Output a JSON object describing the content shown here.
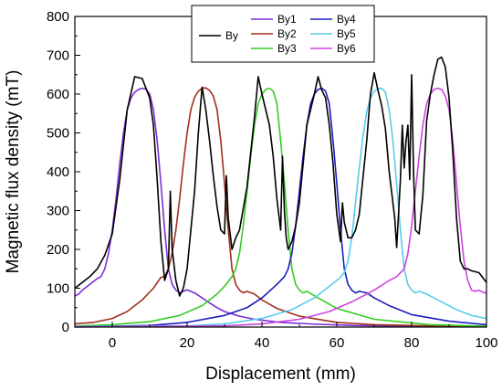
{
  "chart_data": {
    "type": "line",
    "title": "",
    "xlabel": "Displacement (mm)",
    "ylabel": "Magnetic flux density (mT)",
    "xlim": [
      -10,
      100
    ],
    "ylim": [
      0,
      800
    ],
    "xticks": [
      0,
      20,
      40,
      60,
      80,
      100
    ],
    "yticks": [
      0,
      100,
      200,
      300,
      400,
      500,
      600,
      700,
      800
    ],
    "x_tick_labels": [
      "0",
      "20",
      "40",
      "60",
      "80",
      "100"
    ],
    "y_tick_labels": [
      "0",
      "100",
      "200",
      "300",
      "400",
      "500",
      "600",
      "700",
      "800"
    ],
    "grid": false,
    "legend_position": "top-center",
    "legend_entries": [
      "By",
      "By1",
      "By2",
      "By3",
      "By4",
      "By5",
      "By6"
    ],
    "series": [
      {
        "name": "By",
        "color": "#000000",
        "x": [
          -10,
          -6,
          -4,
          -2,
          0,
          2,
          4,
          6,
          8,
          10,
          11,
          12,
          13,
          14,
          15,
          15.5,
          16,
          17,
          18,
          19,
          20,
          22,
          23,
          24,
          25,
          26,
          27,
          28,
          29,
          30,
          30.5,
          31,
          32,
          33,
          34,
          36,
          38,
          39,
          40,
          41,
          42,
          43,
          44,
          45,
          45.5,
          46,
          46.5,
          47,
          48,
          49,
          50,
          52,
          54,
          55,
          56,
          57,
          58,
          59,
          60,
          61,
          61.5,
          62,
          63,
          64,
          65,
          66,
          68,
          69,
          70,
          71,
          72,
          73,
          74,
          75,
          75.5,
          76,
          77,
          77.5,
          78,
          78.5,
          79,
          79.5,
          80,
          80.5,
          81,
          82,
          83,
          84,
          85,
          86,
          87,
          88,
          89,
          90,
          91,
          92,
          93,
          94,
          95,
          96,
          98,
          100
        ],
        "y": [
          100,
          130,
          150,
          185,
          240,
          380,
          560,
          645,
          640,
          590,
          520,
          380,
          220,
          120,
          150,
          350,
          200,
          120,
          80,
          100,
          150,
          350,
          500,
          618,
          560,
          480,
          390,
          310,
          250,
          240,
          390,
          280,
          200,
          230,
          250,
          360,
          540,
          645,
          600,
          560,
          520,
          440,
          330,
          250,
          440,
          300,
          230,
          200,
          220,
          260,
          320,
          520,
          600,
          645,
          610,
          590,
          520,
          420,
          290,
          220,
          320,
          270,
          230,
          230,
          250,
          290,
          480,
          600,
          655,
          610,
          570,
          510,
          400,
          320,
          280,
          205,
          380,
          520,
          410,
          480,
          520,
          380,
          650,
          400,
          250,
          240,
          340,
          530,
          600,
          650,
          690,
          695,
          670,
          590,
          450,
          280,
          170,
          150,
          150,
          145,
          140,
          115
        ]
      },
      {
        "name": "By1",
        "color": "#7b2fd6",
        "x": [
          -10,
          -9,
          -8,
          -6,
          -4,
          -3,
          -2,
          -1,
          0,
          1,
          2,
          3,
          4,
          5,
          6,
          7,
          8,
          9,
          10,
          11,
          12,
          13,
          14,
          15,
          16,
          17,
          18,
          19,
          20,
          22,
          24,
          26,
          28,
          30,
          34,
          38,
          45,
          55,
          65,
          80,
          100
        ],
        "y": [
          80,
          85,
          95,
          110,
          125,
          130,
          150,
          190,
          250,
          330,
          420,
          500,
          560,
          590,
          605,
          612,
          615,
          613,
          600,
          560,
          480,
          370,
          250,
          150,
          110,
          95,
          88,
          92,
          96,
          88,
          75,
          62,
          50,
          40,
          28,
          20,
          12,
          7,
          4,
          2,
          1
        ]
      },
      {
        "name": "By2",
        "color": "#a0301a",
        "x": [
          -10,
          -5,
          0,
          4,
          8,
          11,
          13,
          14,
          15,
          16,
          17,
          18,
          19,
          20,
          21,
          22,
          23,
          24,
          25,
          26,
          27,
          28,
          29,
          30,
          31,
          32,
          33,
          34,
          35,
          36,
          38,
          40,
          44,
          50,
          60,
          70,
          85,
          100
        ],
        "y": [
          8,
          12,
          22,
          40,
          70,
          100,
          128,
          130,
          150,
          190,
          250,
          330,
          420,
          500,
          560,
          592,
          607,
          615,
          616,
          610,
          595,
          560,
          480,
          370,
          250,
          150,
          110,
          95,
          88,
          92,
          85,
          70,
          48,
          28,
          12,
          6,
          3,
          1
        ]
      },
      {
        "name": "By3",
        "color": "#33cc22",
        "x": [
          -10,
          0,
          10,
          18,
          24,
          28,
          30,
          32,
          33,
          34,
          35,
          36,
          37,
          38,
          39,
          40,
          41,
          42,
          43,
          44,
          45,
          46,
          47,
          48,
          49,
          50,
          51,
          52,
          55,
          60,
          70,
          85,
          100
        ],
        "y": [
          2,
          6,
          14,
          30,
          55,
          85,
          105,
          130,
          150,
          190,
          260,
          350,
          440,
          520,
          575,
          600,
          612,
          615,
          608,
          575,
          480,
          370,
          250,
          150,
          110,
          95,
          88,
          92,
          75,
          48,
          20,
          6,
          2
        ]
      },
      {
        "name": "By4",
        "color": "#1c1cc0",
        "x": [
          -10,
          10,
          20,
          30,
          36,
          40,
          44,
          46,
          47,
          48,
          49,
          50,
          51,
          52,
          53,
          54,
          55,
          56,
          57,
          58,
          59,
          60,
          61,
          62,
          63,
          64,
          65,
          66,
          68,
          70,
          74,
          80,
          90,
          100
        ],
        "y": [
          1,
          4,
          12,
          30,
          50,
          75,
          110,
          130,
          150,
          190,
          260,
          350,
          440,
          520,
          575,
          600,
          612,
          615,
          608,
          575,
          480,
          370,
          250,
          150,
          110,
          95,
          88,
          92,
          88,
          75,
          55,
          32,
          15,
          6
        ]
      },
      {
        "name": "By5",
        "color": "#55ccee",
        "x": [
          -10,
          20,
          30,
          40,
          48,
          54,
          58,
          61,
          62,
          63,
          64,
          65,
          66,
          67,
          68,
          69,
          70,
          71,
          72,
          73,
          74,
          75,
          76,
          77,
          78,
          79,
          80,
          81,
          82,
          84,
          88,
          92,
          96,
          100
        ],
        "y": [
          1,
          3,
          8,
          22,
          45,
          75,
          105,
          128,
          140,
          170,
          230,
          320,
          410,
          490,
          555,
          590,
          607,
          614,
          615,
          605,
          560,
          480,
          370,
          250,
          150,
          110,
          95,
          88,
          92,
          85,
          65,
          45,
          30,
          22
        ]
      },
      {
        "name": "By6",
        "color": "#cc44dd",
        "x": [
          -10,
          30,
          40,
          50,
          58,
          64,
          70,
          74,
          76,
          78,
          79,
          80,
          81,
          82,
          83,
          84,
          85,
          86,
          87,
          88,
          89,
          90,
          91,
          92,
          93,
          94,
          95,
          96,
          97,
          98,
          99,
          100
        ],
        "y": [
          0,
          3,
          8,
          20,
          40,
          65,
          95,
          120,
          130,
          150,
          190,
          260,
          350,
          440,
          520,
          575,
          600,
          612,
          615,
          612,
          595,
          560,
          480,
          370,
          260,
          170,
          120,
          95,
          92,
          95,
          90,
          88
        ]
      }
    ]
  }
}
